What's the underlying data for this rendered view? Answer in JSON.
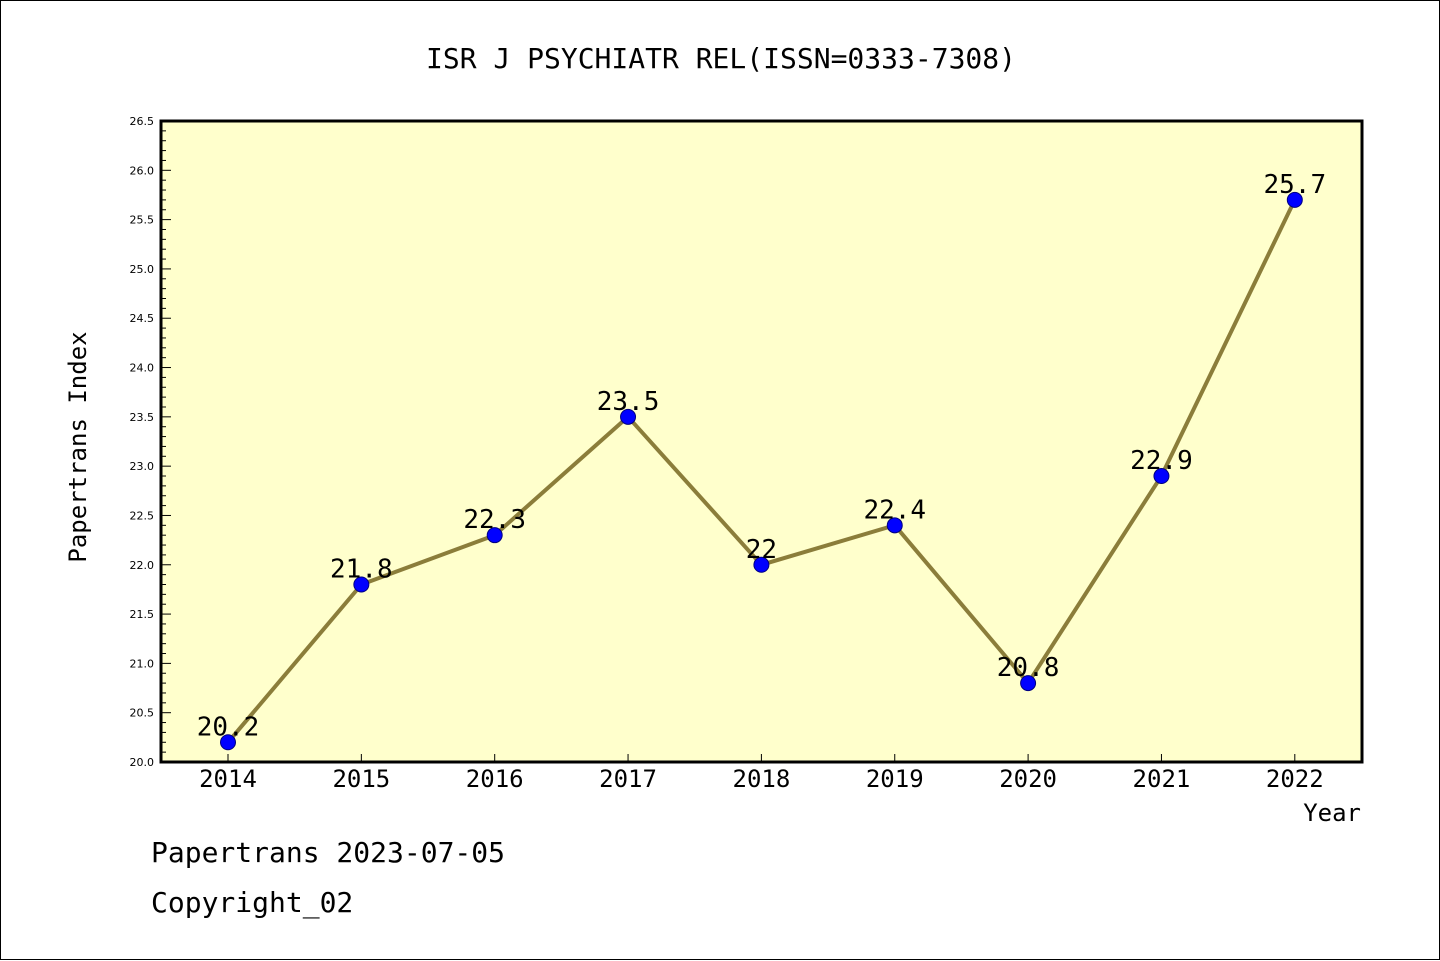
{
  "chart_data": {
    "type": "line",
    "title": "ISR J PSYCHIATR REL(ISSN=0333-7308)",
    "xlabel": "Year",
    "ylabel": "Papertrans Index",
    "categories": [
      "2014",
      "2015",
      "2016",
      "2017",
      "2018",
      "2019",
      "2020",
      "2021",
      "2022"
    ],
    "series": [
      {
        "values": [
          20.2,
          21.8,
          22.3,
          23.5,
          22.0,
          22.4,
          20.8,
          22.9,
          25.7
        ]
      }
    ],
    "data_labels": [
      "20.2",
      "21.8",
      "22.3",
      "23.5",
      "22",
      "22.4",
      "20.8",
      "22.9",
      "25.7"
    ],
    "ylim": [
      20.0,
      26.5
    ],
    "y_ticks": [
      "20.0",
      "20.5",
      "21.0",
      "21.5",
      "22.0",
      "22.5",
      "23.0",
      "23.5",
      "24.0",
      "24.5",
      "25.0",
      "25.5",
      "26.0",
      "26.5"
    ],
    "grid": false,
    "legend": "none",
    "colors": {
      "plot_background": "#ffffcc",
      "line": "#8b7d3a",
      "marker": "#0000ff",
      "marker_edge": "#000080",
      "frame": "#000000"
    }
  },
  "footer": {
    "line1": "Papertrans 2023-07-05",
    "line2": "Copyright_02"
  }
}
